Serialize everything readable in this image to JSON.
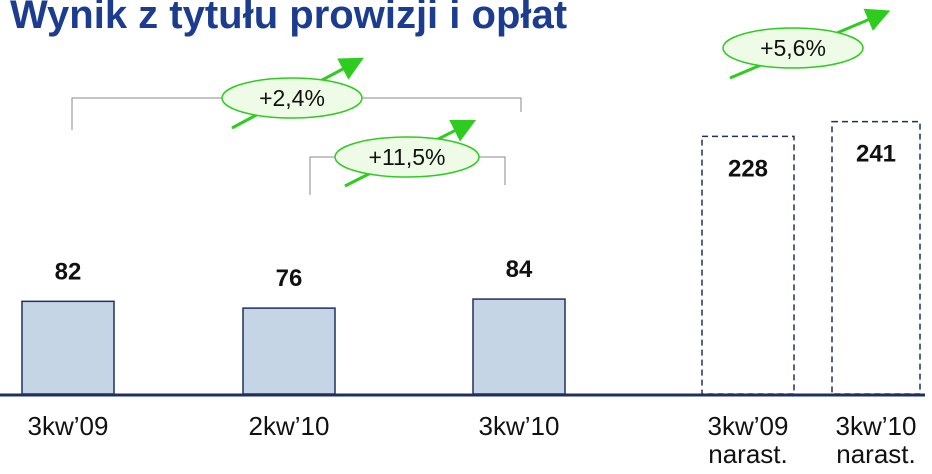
{
  "chart_data": {
    "type": "bar",
    "title": "Wynik z tytułu prowizji i opłat",
    "categories": [
      "3kw’09",
      "2kw’10",
      "3kw’10",
      "3kw’09\nnarast.",
      "3kw’10\nnarast."
    ],
    "values": [
      82,
      76,
      84,
      228,
      241
    ],
    "styles": [
      "solid",
      "solid",
      "solid",
      "dashed",
      "dashed"
    ],
    "color": "#c5d5e5",
    "edge_color": "#1f3060",
    "ylim": [
      0,
      300
    ],
    "annotations": [
      "+2,4%",
      "+11,5%",
      "+5,6%"
    ]
  }
}
